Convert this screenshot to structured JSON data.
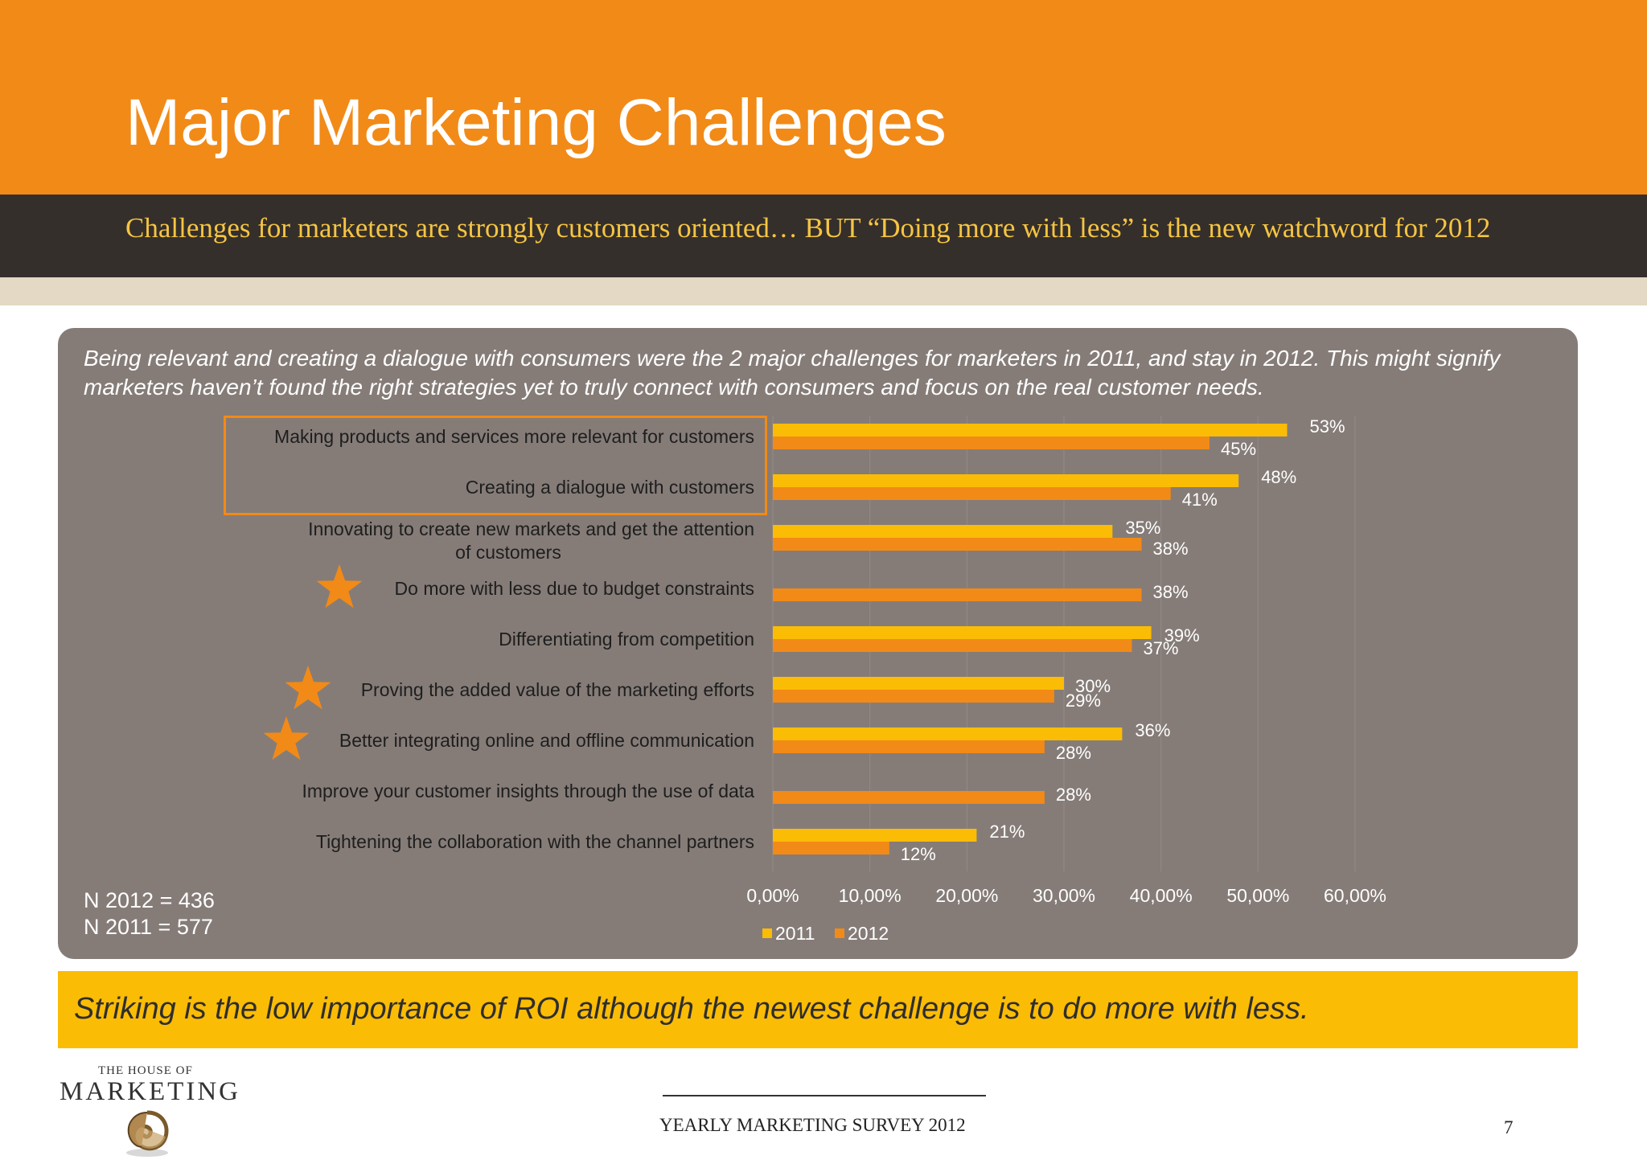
{
  "header": {
    "title": "Major Marketing Challenges",
    "subtitle": "Challenges for marketers are strongly customers oriented… BUT “Doing more with less” is the new watchword for 2012"
  },
  "intro": "Being relevant and creating a dialogue with consumers were the 2 major challenges for marketers in 2011, and stay in 2012. This might signify marketers haven’t found the right strategies yet to truly connect with consumers and focus on the real customer needs.",
  "notes": {
    "n2012": "N 2012 = 436",
    "n2011": "N 2011 = 577"
  },
  "callout": "Striking is the low importance of ROI although the newest challenge is to do more with less.",
  "footer": {
    "logo_top": "THE HOUSE OF",
    "logo_main": "MARKETING",
    "survey": "YEARLY MARKETING SURVEY 2012",
    "page": "7"
  },
  "colors": {
    "orange": "#f28a17",
    "yellow": "#fbbc05",
    "bar2012": "#f28a17",
    "bar2011": "#fbbc05"
  },
  "chart_data": {
    "type": "bar",
    "orientation": "horizontal",
    "categories": [
      "Making products and services more relevant for customers",
      "Creating a dialogue with customers",
      "Innovating to create new markets and get the attention of customers",
      "Do more with less due to budget constraints",
      "Differentiating from competition",
      "Proving the added value of the marketing efforts",
      "Better integrating online and offline communication",
      "Improve your customer insights through the use of data",
      "Tightening the collaboration with the channel partners"
    ],
    "series": [
      {
        "name": "2011",
        "values": [
          53,
          48,
          35,
          null,
          39,
          30,
          36,
          null,
          21
        ]
      },
      {
        "name": "2012",
        "values": [
          45,
          41,
          38,
          38,
          37,
          29,
          28,
          28,
          12
        ]
      }
    ],
    "data_labels": {
      "2011": [
        "53%",
        "48%",
        "35%",
        "",
        "39%",
        "30%",
        "36%",
        "",
        "21%"
      ],
      "2012": [
        "45%",
        "41%",
        "38%",
        "38%",
        "37%",
        "29%",
        "28%",
        "28%",
        "12%"
      ]
    },
    "xticks": [
      "0,00%",
      "10,00%",
      "20,00%",
      "30,00%",
      "40,00%",
      "50,00%",
      "60,00%"
    ],
    "xlim": [
      0,
      60
    ],
    "starred_categories": [
      3,
      5,
      6
    ],
    "highlighted_categories": [
      0,
      1
    ],
    "legend": "bottom"
  }
}
